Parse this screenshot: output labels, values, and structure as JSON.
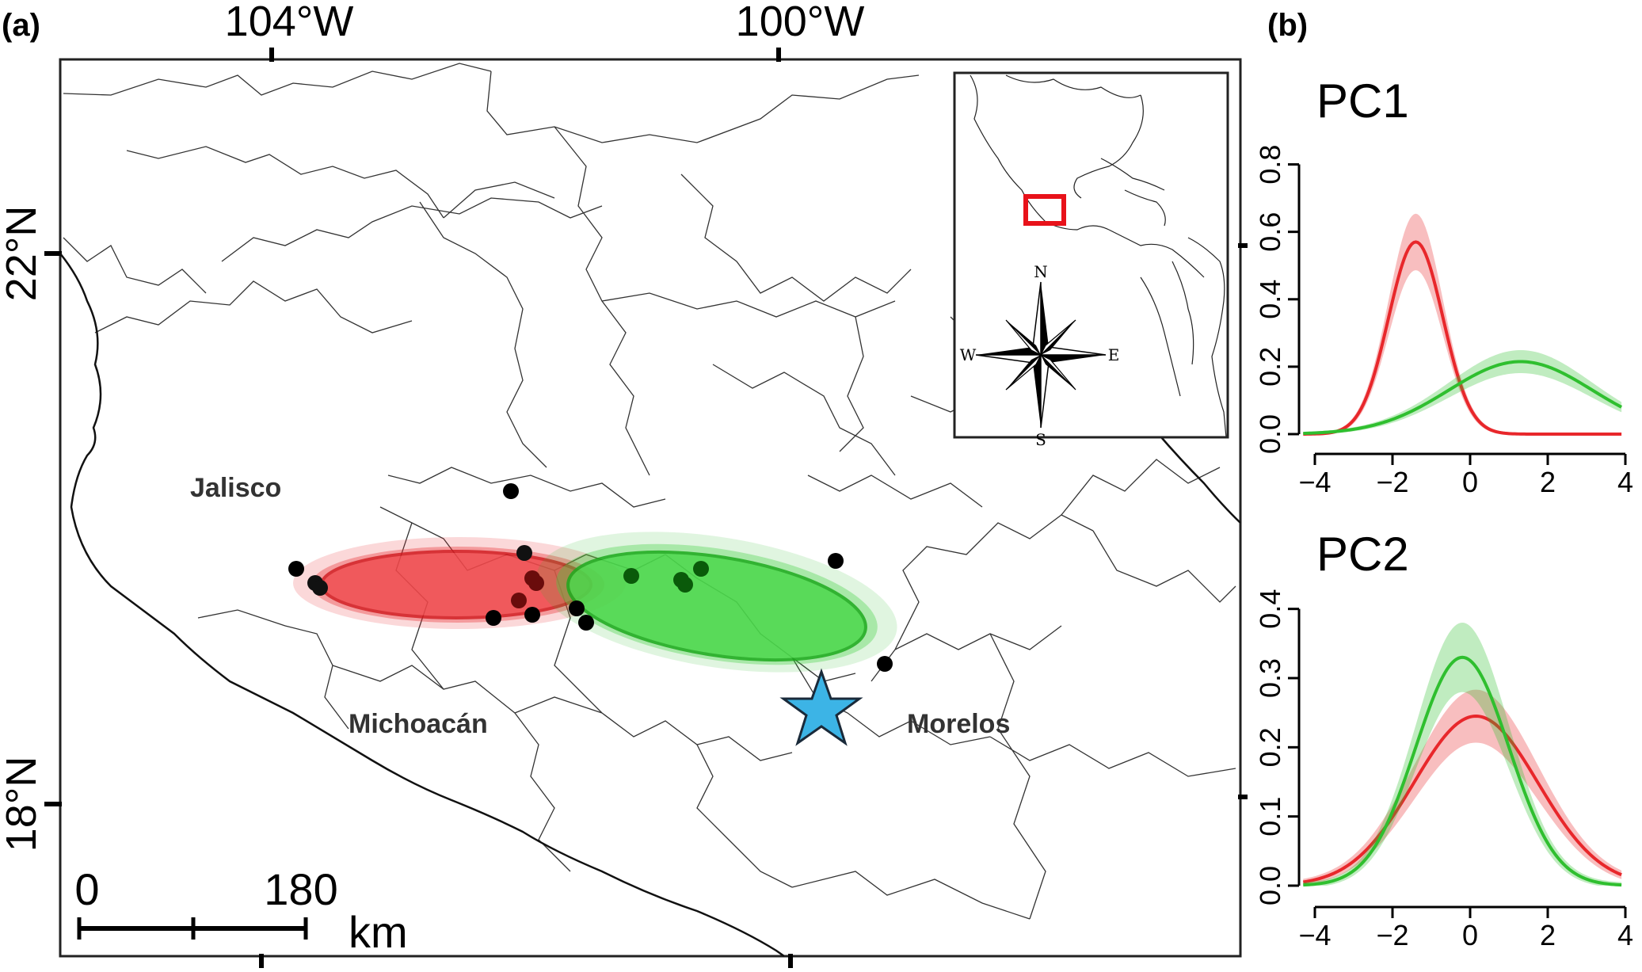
{
  "panels": {
    "a": {
      "label": "(a)"
    },
    "b": {
      "label": "(b)"
    }
  },
  "map": {
    "lon_ticks": [
      "104°W",
      "100°W"
    ],
    "lat_ticks": [
      "22°N",
      "18°N"
    ],
    "states": [
      "Jalisco",
      "Michoacán",
      "Morelos"
    ],
    "scalebar": {
      "start": "0",
      "end": "180",
      "unit": "km"
    },
    "compass": {
      "n": "N",
      "s": "S",
      "e": "E",
      "w": "W"
    },
    "colors": {
      "group1": "#e8272b",
      "group2": "#2fbf2f",
      "star": "#3cb4e6",
      "points": "#000000"
    },
    "marker_icon": "star-icon"
  },
  "chart_data": [
    {
      "type": "line",
      "title": "PC1",
      "xlim": [
        -4,
        4
      ],
      "ylim": [
        0,
        0.9
      ],
      "xticks": [
        "−4",
        "−2",
        "0",
        "2",
        "4"
      ],
      "yticks": [
        "0.0",
        "0.2",
        "0.4",
        "0.6",
        "0.8"
      ],
      "series": [
        {
          "color": "#e8272b",
          "mean": -1.4,
          "sd": 0.7,
          "peak": 0.57
        },
        {
          "color": "#2fbf2f",
          "mean": 1.3,
          "sd": 1.85,
          "peak": 0.215
        }
      ]
    },
    {
      "type": "line",
      "title": "PC2",
      "xlim": [
        -4,
        4
      ],
      "ylim": [
        0,
        0.45
      ],
      "xticks": [
        "−4",
        "−2",
        "0",
        "2",
        "4"
      ],
      "yticks": [
        "0.0",
        "0.1",
        "0.2",
        "0.3",
        "0.4"
      ],
      "series": [
        {
          "color": "#e8272b",
          "mean": 0.15,
          "sd": 1.6,
          "peak": 0.245
        },
        {
          "color": "#2fbf2f",
          "mean": -0.2,
          "sd": 1.2,
          "peak": 0.33
        }
      ]
    }
  ]
}
